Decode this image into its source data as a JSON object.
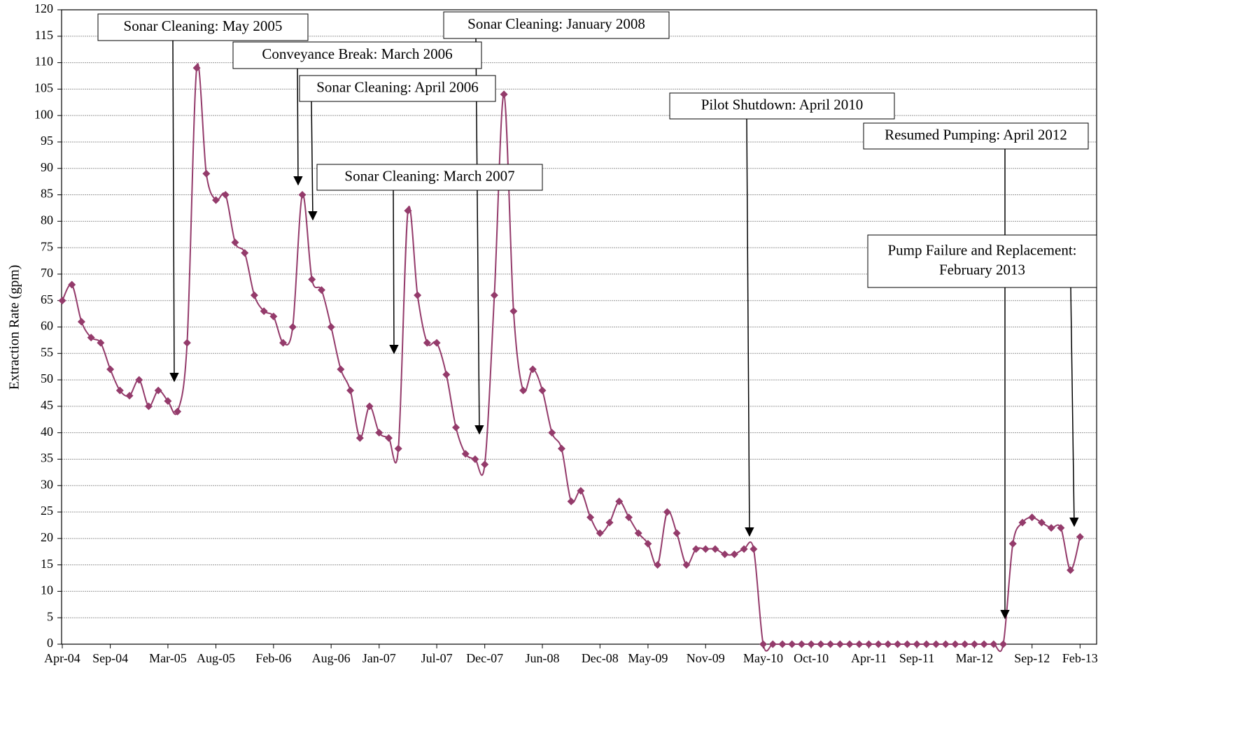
{
  "chart_data": {
    "type": "line",
    "y_axis_label": "Extraction Rate (gpm)",
    "categories": [
      "Apr-04",
      null,
      null,
      null,
      null,
      "Sep-04",
      null,
      null,
      null,
      null,
      null,
      "Mar-05",
      null,
      null,
      null,
      null,
      "Aug-05",
      null,
      null,
      null,
      null,
      null,
      "Feb-06",
      null,
      null,
      null,
      null,
      null,
      "Aug-06",
      null,
      null,
      null,
      null,
      "Jan-07",
      null,
      null,
      null,
      null,
      null,
      "Jul-07",
      null,
      null,
      null,
      null,
      "Dec-07",
      null,
      null,
      null,
      null,
      null,
      "Jun-08",
      null,
      null,
      null,
      null,
      null,
      "Dec-08",
      null,
      null,
      null,
      null,
      "May-09",
      null,
      null,
      null,
      null,
      null,
      "Nov-09",
      null,
      null,
      null,
      null,
      null,
      "May-10",
      null,
      null,
      null,
      null,
      "Oct-10",
      null,
      null,
      null,
      null,
      null,
      "Apr-11",
      null,
      null,
      null,
      null,
      "Sep-11",
      null,
      null,
      null,
      null,
      null,
      "Mar-12",
      null,
      null,
      null,
      null,
      null,
      "Sep-12",
      null,
      null,
      null,
      null,
      "Feb-13"
    ],
    "series": [
      {
        "name": "Extraction Rate",
        "color": "#943b6b",
        "values": [
          65,
          68,
          61,
          58,
          57,
          52,
          48,
          47,
          50,
          45,
          48,
          46,
          44,
          57,
          109,
          89,
          84,
          85,
          76,
          74,
          66,
          63,
          62,
          57,
          60,
          85,
          69,
          67,
          60,
          52,
          48,
          39,
          45,
          40,
          39,
          37,
          82,
          66,
          57,
          57,
          51,
          41,
          36,
          35,
          34,
          66,
          104,
          63,
          48,
          52,
          48,
          40,
          37,
          27,
          29,
          24,
          21,
          23,
          27,
          24,
          21,
          19,
          15,
          25,
          21,
          15,
          18,
          18,
          18,
          17,
          17,
          18,
          18,
          0,
          0,
          0,
          0,
          0,
          0,
          0,
          0,
          0,
          0,
          0,
          0,
          0,
          0,
          0,
          0,
          0,
          0,
          0,
          0,
          0,
          0,
          0,
          0,
          0,
          0,
          19,
          23,
          24,
          23,
          22,
          22,
          14,
          20.3
        ]
      }
    ],
    "ylim": [
      0,
      120
    ],
    "yticks": [
      0,
      5,
      10,
      15,
      20,
      25,
      30,
      35,
      40,
      45,
      50,
      55,
      60,
      65,
      70,
      75,
      80,
      85,
      90,
      95,
      100,
      105,
      110,
      115,
      120
    ],
    "grid": true,
    "annotations": [
      {
        "lines": [
          "Sonar Cleaning: May 2005"
        ]
      },
      {
        "lines": [
          "Conveyance Break: March 2006"
        ]
      },
      {
        "lines": [
          "Sonar Cleaning: April 2006"
        ]
      },
      {
        "lines": [
          "Sonar Cleaning: January 2008"
        ]
      },
      {
        "lines": [
          "Sonar Cleaning: March 2007"
        ]
      },
      {
        "lines": [
          "Pilot Shutdown: April 2010"
        ]
      },
      {
        "lines": [
          "Resumed Pumping: April 2012"
        ]
      },
      {
        "lines": [
          "Pump Failure and Replacement:",
          "February 2013"
        ]
      }
    ]
  }
}
